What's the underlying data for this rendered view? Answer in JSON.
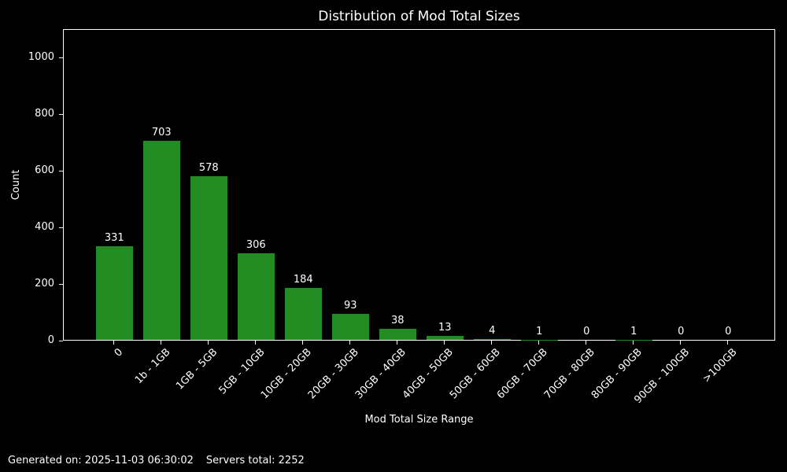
{
  "chart_data": {
    "type": "bar",
    "title": "Distribution of Mod Total Sizes",
    "xlabel": "Mod Total Size Range",
    "ylabel": "Count",
    "categories": [
      "0",
      "1b - 1GB",
      "1GB - 5GB",
      "5GB - 10GB",
      "10GB - 20GB",
      "20GB - 30GB",
      "30GB - 40GB",
      "40GB - 50GB",
      "50GB - 60GB",
      "60GB - 70GB",
      "70GB - 80GB",
      "80GB - 90GB",
      "90GB - 100GB",
      ">100GB"
    ],
    "values": [
      331,
      703,
      578,
      306,
      184,
      93,
      38,
      13,
      4,
      1,
      0,
      1,
      0,
      0
    ],
    "yticks": [
      0,
      200,
      400,
      600,
      800,
      1000
    ],
    "ylim": [
      0,
      1100
    ],
    "x_tick_rotation": 45,
    "grid": false,
    "legend_position": "none",
    "value_labels_shown": true,
    "bar_color": "#228b22",
    "background_color": "#000000",
    "text_color": "#ffffff"
  },
  "footer": {
    "generated_label": "Generated on: 2025-11-03 06:30:02",
    "servers_label": "Servers total: 2252"
  }
}
